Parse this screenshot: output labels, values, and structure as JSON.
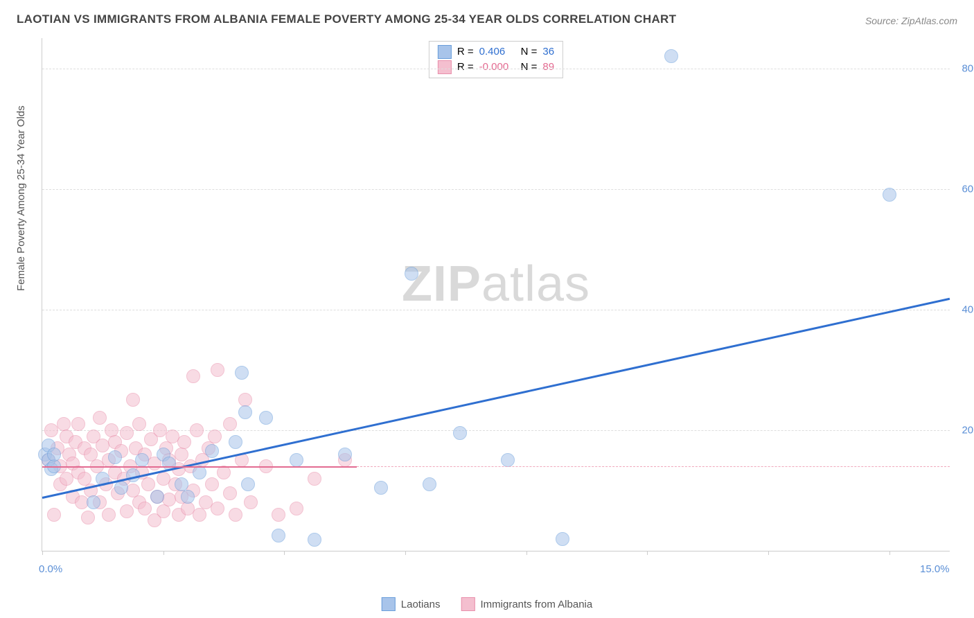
{
  "title": "LAOTIAN VS IMMIGRANTS FROM ALBANIA FEMALE POVERTY AMONG 25-34 YEAR OLDS CORRELATION CHART",
  "source": "Source: ZipAtlas.com",
  "ylabel": "Female Poverty Among 25-34 Year Olds",
  "watermark_a": "ZIP",
  "watermark_b": "atlas",
  "chart": {
    "type": "scatter",
    "xlim": [
      0,
      15
    ],
    "ylim": [
      0,
      85
    ],
    "xticks": [
      0,
      2,
      4,
      6,
      8,
      10,
      12,
      14
    ],
    "xtick_labels": {
      "0": "0.0%",
      "15": "15.0%"
    },
    "yticks": [
      20,
      40,
      60,
      80
    ],
    "ytick_labels": [
      "20.0%",
      "40.0%",
      "60.0%",
      "80.0%"
    ],
    "grid_color": "#dddddd",
    "background_color": "#ffffff",
    "border_color": "#cccccc",
    "axis_label_color": "#5b8fd6",
    "point_radius": 9,
    "point_opacity": 0.55,
    "series": [
      {
        "name": "Laotians",
        "fill": "#a8c4ea",
        "stroke": "#6a9edb",
        "trend": {
          "color": "#2f6fd0",
          "width": 2.5,
          "x0": 0,
          "y0": 9,
          "x1": 15,
          "y1": 42,
          "dash_extend": false
        },
        "R": "0.406",
        "N": "36",
        "R_color": "#2f6fd0",
        "points": [
          [
            0.05,
            16
          ],
          [
            0.1,
            15
          ],
          [
            0.1,
            17.5
          ],
          [
            0.15,
            13.5
          ],
          [
            0.2,
            14
          ],
          [
            0.2,
            16
          ],
          [
            0.85,
            8
          ],
          [
            1.0,
            12
          ],
          [
            1.2,
            15.5
          ],
          [
            1.3,
            10.5
          ],
          [
            1.5,
            12.5
          ],
          [
            1.65,
            15
          ],
          [
            1.9,
            9
          ],
          [
            2.0,
            16
          ],
          [
            2.1,
            14.5
          ],
          [
            2.3,
            11
          ],
          [
            2.4,
            9
          ],
          [
            2.6,
            13
          ],
          [
            2.8,
            16.5
          ],
          [
            3.2,
            18
          ],
          [
            3.3,
            29.5
          ],
          [
            3.35,
            23
          ],
          [
            3.4,
            11
          ],
          [
            3.7,
            22
          ],
          [
            3.9,
            2.5
          ],
          [
            4.2,
            15
          ],
          [
            4.5,
            1.8
          ],
          [
            5.0,
            16
          ],
          [
            5.6,
            10.5
          ],
          [
            6.1,
            46
          ],
          [
            6.4,
            11
          ],
          [
            6.9,
            19.5
          ],
          [
            7.7,
            15
          ],
          [
            8.6,
            2
          ],
          [
            10.4,
            82
          ],
          [
            14.0,
            59
          ]
        ]
      },
      {
        "name": "Immigrants from Albania",
        "fill": "#f4bfcf",
        "stroke": "#e98fab",
        "trend": {
          "color": "#e36b91",
          "width": 2,
          "x0": 0,
          "y0": 14,
          "x1": 5.2,
          "y1": 14,
          "dash_extend": true,
          "dash_color": "#f0a8bc"
        },
        "R": "-0.000",
        "N": "89",
        "R_color": "#e36b91",
        "points": [
          [
            0.1,
            15
          ],
          [
            0.15,
            20
          ],
          [
            0.2,
            6
          ],
          [
            0.25,
            17
          ],
          [
            0.3,
            11
          ],
          [
            0.3,
            14
          ],
          [
            0.35,
            21
          ],
          [
            0.4,
            19
          ],
          [
            0.4,
            12
          ],
          [
            0.45,
            16
          ],
          [
            0.5,
            9
          ],
          [
            0.5,
            14.5
          ],
          [
            0.55,
            18
          ],
          [
            0.6,
            13
          ],
          [
            0.6,
            21
          ],
          [
            0.65,
            8
          ],
          [
            0.7,
            17
          ],
          [
            0.7,
            12
          ],
          [
            0.75,
            5.5
          ],
          [
            0.8,
            16
          ],
          [
            0.8,
            10
          ],
          [
            0.85,
            19
          ],
          [
            0.9,
            14
          ],
          [
            0.95,
            22
          ],
          [
            0.95,
            8
          ],
          [
            1.0,
            17.5
          ],
          [
            1.05,
            11
          ],
          [
            1.1,
            15
          ],
          [
            1.1,
            6
          ],
          [
            1.15,
            20
          ],
          [
            1.2,
            13
          ],
          [
            1.2,
            18
          ],
          [
            1.25,
            9.5
          ],
          [
            1.3,
            16.5
          ],
          [
            1.35,
            12
          ],
          [
            1.4,
            6.5
          ],
          [
            1.4,
            19.5
          ],
          [
            1.45,
            14
          ],
          [
            1.5,
            25
          ],
          [
            1.5,
            10
          ],
          [
            1.55,
            17
          ],
          [
            1.6,
            8
          ],
          [
            1.6,
            21
          ],
          [
            1.65,
            13
          ],
          [
            1.7,
            7
          ],
          [
            1.7,
            16
          ],
          [
            1.75,
            11
          ],
          [
            1.8,
            18.5
          ],
          [
            1.85,
            5
          ],
          [
            1.85,
            14.5
          ],
          [
            1.9,
            9
          ],
          [
            1.95,
            20
          ],
          [
            2.0,
            12
          ],
          [
            2.0,
            6.5
          ],
          [
            2.05,
            17
          ],
          [
            2.1,
            15
          ],
          [
            2.1,
            8.5
          ],
          [
            2.15,
            19
          ],
          [
            2.2,
            11
          ],
          [
            2.25,
            6
          ],
          [
            2.25,
            13.5
          ],
          [
            2.3,
            16
          ],
          [
            2.3,
            9
          ],
          [
            2.35,
            18
          ],
          [
            2.4,
            7
          ],
          [
            2.45,
            14
          ],
          [
            2.5,
            29
          ],
          [
            2.5,
            10
          ],
          [
            2.55,
            20
          ],
          [
            2.6,
            6
          ],
          [
            2.65,
            15
          ],
          [
            2.7,
            8
          ],
          [
            2.75,
            17
          ],
          [
            2.8,
            11
          ],
          [
            2.85,
            19
          ],
          [
            2.9,
            30
          ],
          [
            2.9,
            7
          ],
          [
            3.0,
            13
          ],
          [
            3.1,
            9.5
          ],
          [
            3.1,
            21
          ],
          [
            3.2,
            6
          ],
          [
            3.3,
            15
          ],
          [
            3.35,
            25
          ],
          [
            3.45,
            8
          ],
          [
            3.7,
            14
          ],
          [
            3.9,
            6
          ],
          [
            4.2,
            7
          ],
          [
            4.5,
            12
          ],
          [
            5.0,
            15
          ]
        ]
      }
    ]
  },
  "legend_top_prefix_R": "R = ",
  "legend_top_prefix_N": "N = "
}
